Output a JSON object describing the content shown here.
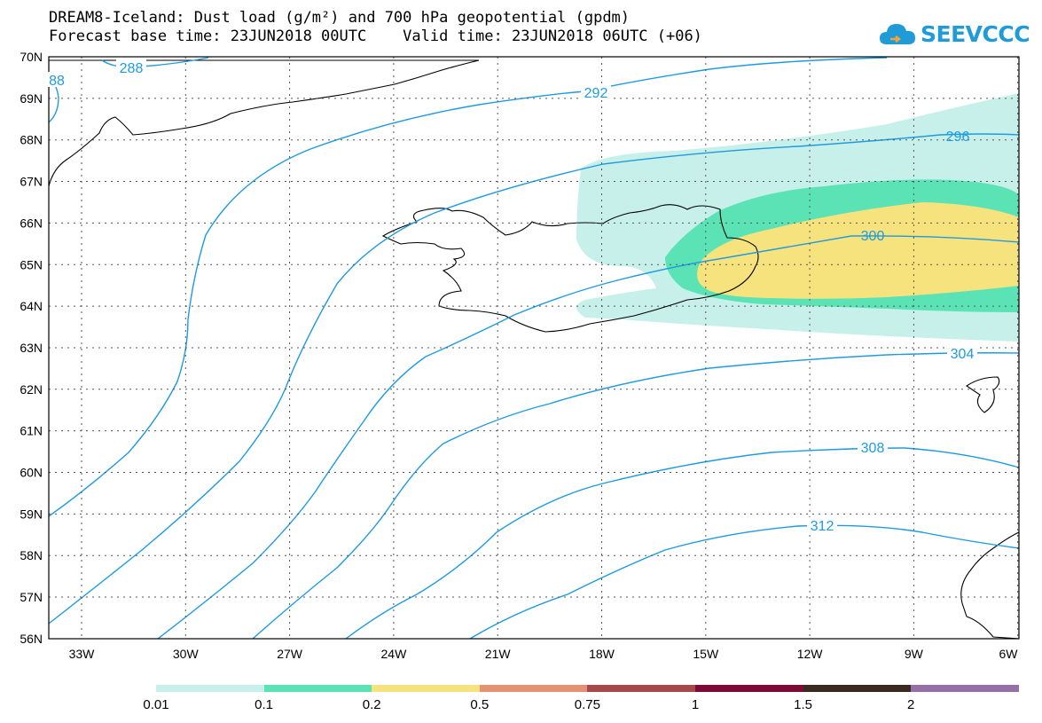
{
  "title_line1": "DREAM8-Iceland: Dust load (g/m²) and 700 hPa geopotential (gpdm)",
  "title_line2": "Forecast base time: 23JUN2018 00UTC    Valid time: 23JUN2018 06UTC (+06)",
  "logo": {
    "icon": "cloud-icon",
    "text": "SEEVCCC",
    "color": "#1f9bd8"
  },
  "lat_labels": [
    "70N",
    "69N",
    "68N",
    "67N",
    "66N",
    "65N",
    "64N",
    "63N",
    "62N",
    "61N",
    "60N",
    "59N",
    "58N",
    "57N",
    "56N"
  ],
  "lon_labels": [
    "33W",
    "30W",
    "27W",
    "24W",
    "21W",
    "18W",
    "15W",
    "12W",
    "9W",
    "6W"
  ],
  "contour_labels": [
    "288",
    "88",
    "292",
    "296",
    "300",
    "304",
    "308",
    "312"
  ],
  "colorbar": {
    "labels": [
      "0.01",
      "0.1",
      "0.2",
      "0.5",
      "0.75",
      "1",
      "1.5",
      "2"
    ],
    "colors": [
      "#c8f0ea",
      "#5be3b6",
      "#f7e37e",
      "#e49276",
      "#a64b4b",
      "#7d0a35",
      "#3a2a20",
      "#9570a8"
    ]
  },
  "colors": {
    "contour": "#1e9be0",
    "coast": "#000000",
    "grid": "#555555"
  }
}
